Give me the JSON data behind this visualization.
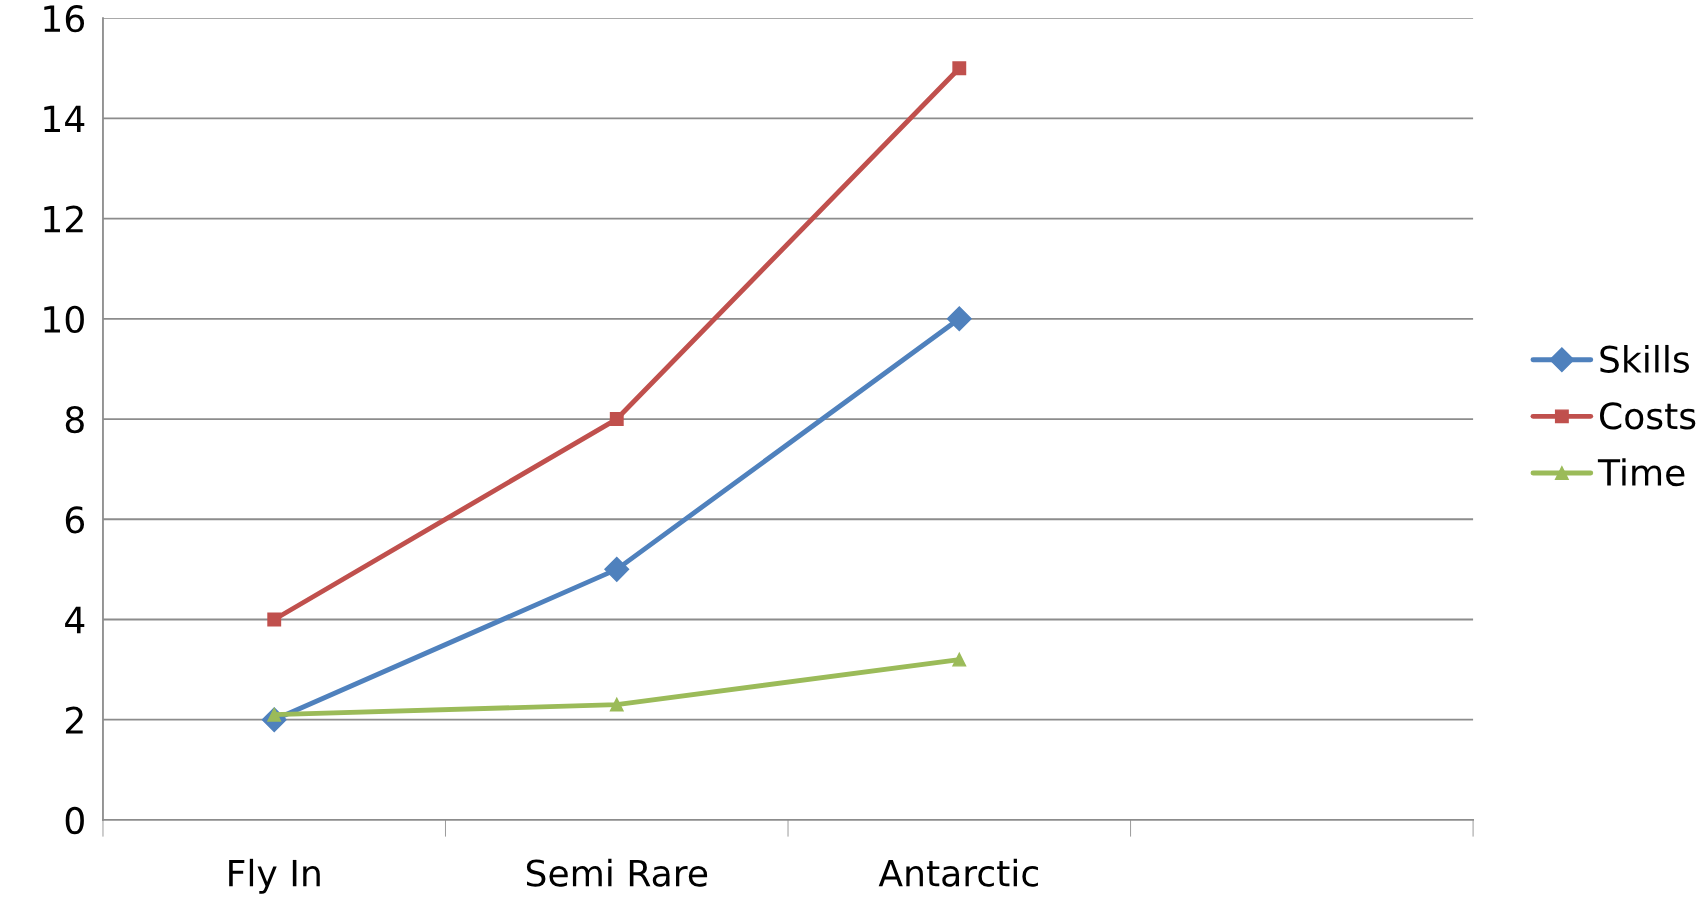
{
  "chart_data": {
    "type": "line",
    "categories": [
      "Fly In",
      "Semi Rare",
      "Antarctic",
      null
    ],
    "series": [
      {
        "name": "Skills",
        "color": "#4f81bd",
        "marker": "diamond",
        "values": [
          2,
          5,
          10,
          null
        ]
      },
      {
        "name": "Costs",
        "color": "#c0504d",
        "marker": "square",
        "values": [
          4,
          8,
          15,
          null
        ]
      },
      {
        "name": "Time",
        "color": "#9bbb59",
        "marker": "triangle",
        "values": [
          2.1,
          2.3,
          3.2,
          null
        ]
      }
    ],
    "ylim": [
      0,
      16
    ],
    "yticks": [
      0,
      2,
      4,
      6,
      8,
      10,
      12,
      14,
      16
    ],
    "grid": "y",
    "legend": "right",
    "line_style": "solid"
  }
}
